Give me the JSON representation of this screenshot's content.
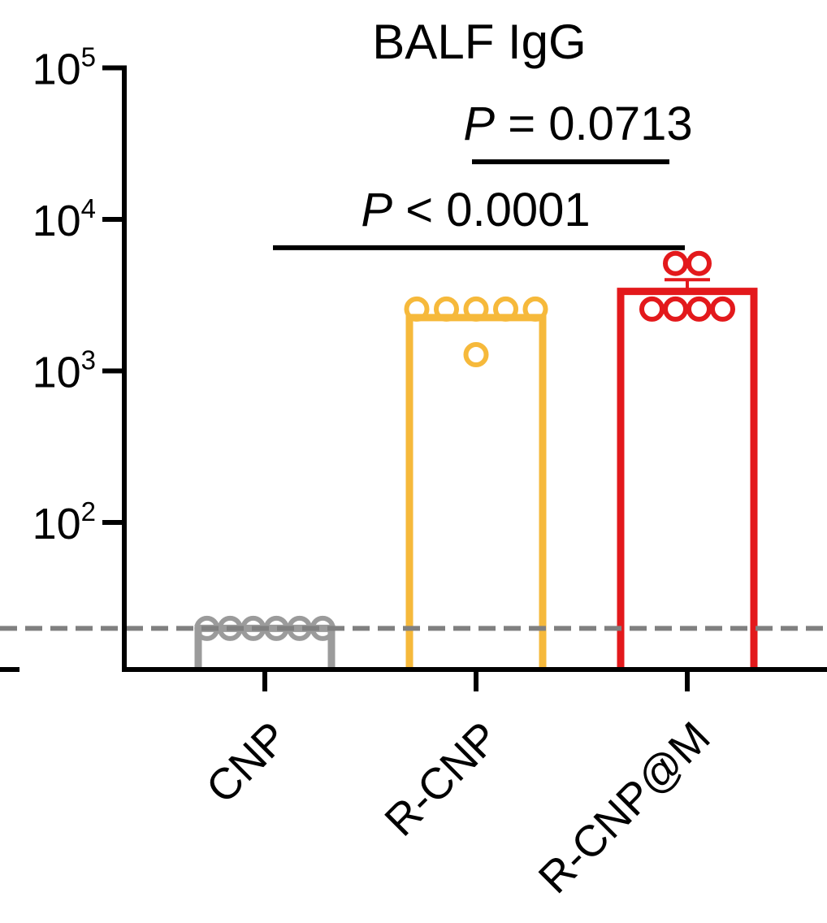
{
  "chart_data": {
    "type": "bar",
    "title": "BALF IgG",
    "xlabel": "",
    "ylabel": "",
    "scale": "log",
    "ylim": [
      5,
      100000
    ],
    "detection_limit": 20,
    "yticks": [
      {
        "value": 100,
        "base": "10",
        "exp": "2"
      },
      {
        "value": 1000,
        "base": "10",
        "exp": "3"
      },
      {
        "value": 10000,
        "base": "10",
        "exp": "4"
      },
      {
        "value": 100000,
        "base": "10",
        "exp": "5"
      }
    ],
    "categories": [
      "CNP",
      "R-CNP",
      "R-CNP@M"
    ],
    "colors": [
      "#9b9b9b",
      "#f6b93b",
      "#e3191c"
    ],
    "values": [
      20,
      2250,
      3350
    ],
    "errors": [
      0,
      0,
      650
    ],
    "points": [
      [
        20,
        20,
        20,
        20,
        20,
        20
      ],
      [
        2560,
        2560,
        2560,
        2560,
        2560,
        1280
      ],
      [
        2560,
        2560,
        2560,
        2560,
        5120,
        5120
      ]
    ],
    "annotations": [
      {
        "italic": "P",
        "text": " < 0.0001",
        "from": 0,
        "to": 2,
        "y": 6500
      },
      {
        "italic": "P",
        "text": " = 0.0713",
        "from": 1,
        "to": 2,
        "y": 24000
      }
    ],
    "grid": false,
    "legend": "none"
  }
}
